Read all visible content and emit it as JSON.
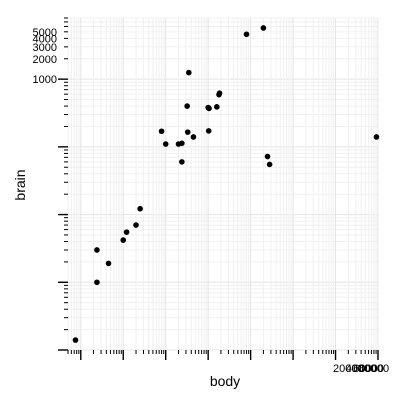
{
  "chart_data": {
    "type": "scatter",
    "xlabel": "body",
    "ylabel": "brain",
    "x_scale": "log10",
    "y_scale": "log10",
    "xlim": [
      0.005,
      100000
    ],
    "ylim": [
      0.1,
      8000
    ],
    "x_tick_labels": [
      {
        "value": 20000,
        "label": "20000"
      },
      {
        "value": 40000,
        "label": "40000"
      },
      {
        "value": 60000,
        "label": "60000"
      },
      {
        "value": 80000,
        "label": "80000"
      }
    ],
    "y_tick_labels": [
      {
        "value": 1000,
        "label": "1000"
      },
      {
        "value": 2000,
        "label": "2000"
      },
      {
        "value": 3000,
        "label": "3000"
      },
      {
        "value": 4000,
        "label": "4000"
      },
      {
        "value": 5000,
        "label": "5000"
      }
    ],
    "grid": true,
    "legend": "none",
    "points": [
      {
        "x": 0.0075,
        "y": 0.14
      },
      {
        "x": 0.024,
        "y": 1.0
      },
      {
        "x": 0.024,
        "y": 3.0
      },
      {
        "x": 0.045,
        "y": 1.9
      },
      {
        "x": 0.1,
        "y": 4.2
      },
      {
        "x": 0.12,
        "y": 5.5
      },
      {
        "x": 0.2,
        "y": 7.0
      },
      {
        "x": 0.25,
        "y": 12.2
      },
      {
        "x": 0.8,
        "y": 170
      },
      {
        "x": 1.0,
        "y": 110
      },
      {
        "x": 2.0,
        "y": 110
      },
      {
        "x": 2.4,
        "y": 60
      },
      {
        "x": 2.4,
        "y": 113
      },
      {
        "x": 3.2,
        "y": 400
      },
      {
        "x": 3.3,
        "y": 165
      },
      {
        "x": 3.5,
        "y": 1250
      },
      {
        "x": 4.5,
        "y": 140
      },
      {
        "x": 10.0,
        "y": 380
      },
      {
        "x": 10.3,
        "y": 172
      },
      {
        "x": 10.5,
        "y": 370
      },
      {
        "x": 16.0,
        "y": 390
      },
      {
        "x": 18.0,
        "y": 590
      },
      {
        "x": 18.5,
        "y": 620
      },
      {
        "x": 80,
        "y": 4600
      },
      {
        "x": 200,
        "y": 5700
      },
      {
        "x": 250,
        "y": 72
      },
      {
        "x": 280,
        "y": 55
      },
      {
        "x": 92000,
        "y": 140
      }
    ]
  }
}
